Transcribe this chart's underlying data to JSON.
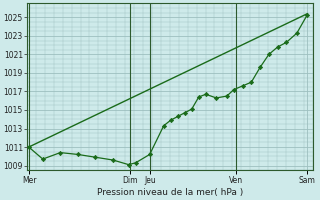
{
  "xlabel": "Pression niveau de la mer( hPa )",
  "bg_color": "#ceeaea",
  "grid_color": "#9dbfbf",
  "line_color": "#1a6b1a",
  "ylim": [
    1008.5,
    1026.5
  ],
  "yticks": [
    1009,
    1011,
    1013,
    1015,
    1017,
    1019,
    1021,
    1023,
    1025
  ],
  "line1_x": [
    0,
    0.4,
    0.9,
    1.4,
    1.9,
    2.4,
    2.85,
    3.05,
    3.45,
    3.85,
    4.05,
    4.25,
    4.45,
    4.65,
    4.85,
    5.05,
    5.35,
    5.65,
    5.85,
    6.1,
    6.35,
    6.6,
    6.85,
    7.1,
    7.35,
    7.65,
    7.95
  ],
  "line1_y": [
    1011.0,
    1009.7,
    1010.4,
    1010.2,
    1009.9,
    1009.6,
    1009.1,
    1009.3,
    1010.2,
    1013.3,
    1013.9,
    1014.3,
    1014.7,
    1015.1,
    1016.4,
    1016.7,
    1016.3,
    1016.5,
    1017.2,
    1017.6,
    1018.0,
    1019.6,
    1021.0,
    1021.8,
    1022.3,
    1023.3,
    1025.3
  ],
  "line2_x": [
    0,
    7.95
  ],
  "line2_y": [
    1011.0,
    1025.4
  ],
  "vlines": [
    0.02,
    2.88,
    3.47,
    5.92
  ],
  "xtick_pos": [
    0.02,
    2.88,
    3.47,
    5.92,
    7.95
  ],
  "xtick_lab": [
    "Mer",
    "Dim",
    "Jeu",
    "Ven",
    "Sam"
  ],
  "xmin": -0.05,
  "xmax": 8.1,
  "marker": "D",
  "markersize": 2.2
}
